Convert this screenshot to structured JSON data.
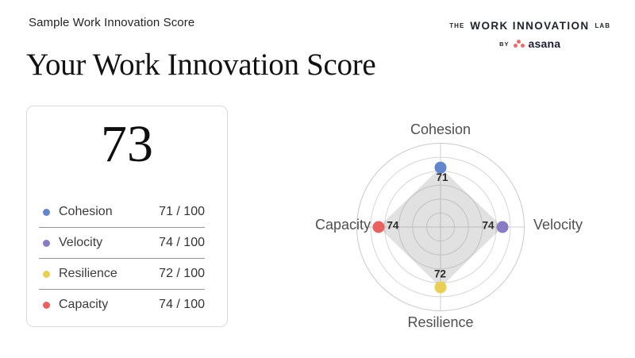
{
  "page": {
    "eyebrow": "Sample Work Innovation Score",
    "title": "Your Work Innovation Score"
  },
  "logo": {
    "the": "THE",
    "main": "WORK INNOVATION",
    "lab": "LAB",
    "by": "BY",
    "brand": "asana",
    "brand_color": "#f06a6a"
  },
  "score_card": {
    "overall_score": "73",
    "metrics": [
      {
        "label": "Cohesion",
        "value": "71 / 100",
        "color": "#6285cc"
      },
      {
        "label": "Velocity",
        "value": "74 / 100",
        "color": "#8a7cc4"
      },
      {
        "label": "Resilience",
        "value": "72 / 100",
        "color": "#e9cf55"
      },
      {
        "label": "Capacity",
        "value": "74 / 100",
        "color": "#e96262"
      }
    ]
  },
  "chart_data": {
    "type": "radar",
    "axes": [
      "Cohesion",
      "Velocity",
      "Resilience",
      "Capacity"
    ],
    "values": [
      71,
      74,
      72,
      74
    ],
    "point_labels": [
      "71",
      "74",
      "72",
      "74"
    ],
    "colors": [
      "#6285cc",
      "#8a7cc4",
      "#e9cf55",
      "#e96262"
    ],
    "max": 100,
    "rings": 6,
    "fill_color": "rgba(120,120,120,0.22)",
    "ring_color": "#d6d6d6",
    "outer_ring_color": "#c9c9c9",
    "axis_line_color": "#cfcfcf",
    "axis_label_color": "#4f4f4f",
    "value_label_color": "#2b2b2b"
  }
}
